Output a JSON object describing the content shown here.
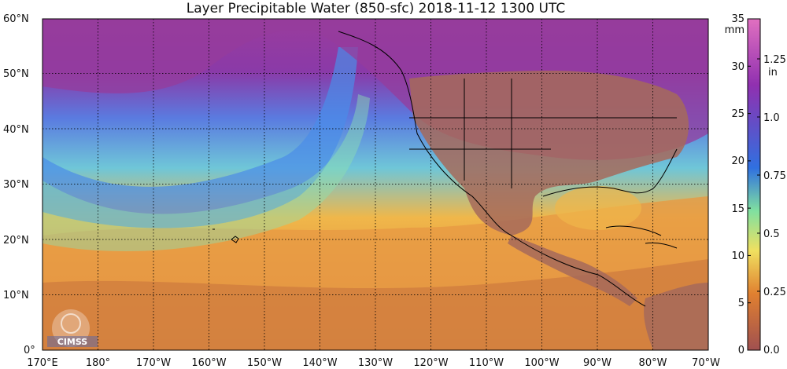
{
  "title": "Layer Precipitable Water (850-sfc)  2018-11-12 1300 UTC",
  "lat_labels": [
    "60°N",
    "50°N",
    "40°N",
    "30°N",
    "20°N",
    "10°N",
    "0°"
  ],
  "lon_labels": [
    "170°E",
    "180°",
    "170°W",
    "160°W",
    "150°W",
    "140°W",
    "130°W",
    "120°W",
    "110°W",
    "100°W",
    "90°W",
    "80°W",
    "70°W"
  ],
  "colorbar": {
    "mm_unit": "mm",
    "mm_ticks": [
      "35",
      "30",
      "25",
      "20",
      "15",
      "10",
      "5",
      "0"
    ],
    "in_unit": "in",
    "in_ticks": [
      "1.25",
      "1.0",
      "0.75",
      "0.5",
      "0.25",
      "0.0"
    ],
    "colors": [
      "#e070c0",
      "#9030b0",
      "#3070e0",
      "#80e0a0",
      "#f0e060",
      "#e08030",
      "#a05050"
    ]
  },
  "logo": "CIMSS"
}
